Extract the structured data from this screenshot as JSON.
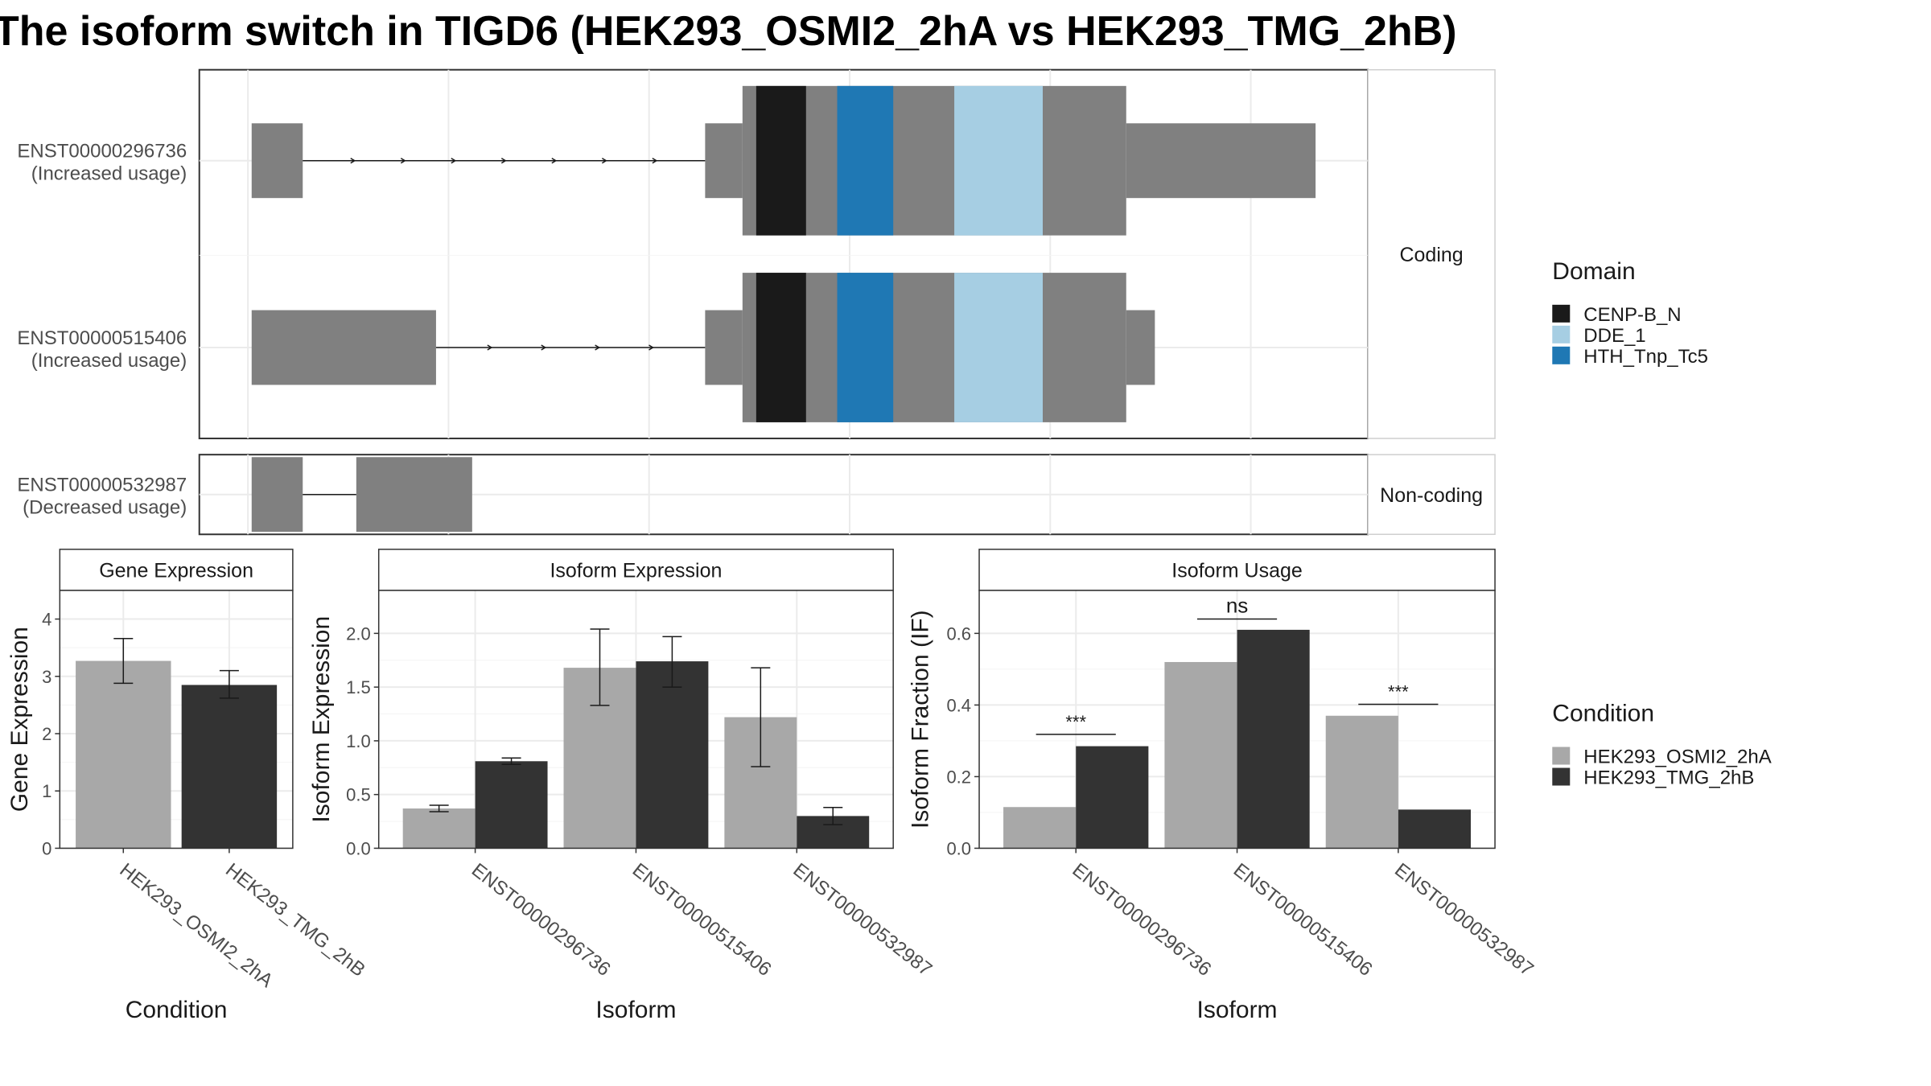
{
  "title": "The isoform switch in TIGD6 (HEK293_OSMI2_2hA vs HEK293_TMG_2hB)",
  "colors": {
    "cond1": "#a8a8a8",
    "cond2": "#333333",
    "exon": "#808080",
    "grid": "#ebebeb",
    "strip": "#ffffff",
    "CENP-B_N": "#1a1a1a",
    "DDE_1": "#a6cee3",
    "HTH_Tnp_Tc5": "#1f78b4"
  },
  "structure": {
    "coding_strip": "Coding",
    "noncoding_strip": "Non-coding",
    "isoforms": [
      {
        "label": "ENST00000296736",
        "sublabel": "(Increased usage)"
      },
      {
        "label": "ENST00000515406",
        "sublabel": "(Increased usage)"
      },
      {
        "label": "ENST00000532987",
        "sublabel": "(Decreased usage)"
      }
    ]
  },
  "legend_domain": {
    "title": "Domain",
    "items": [
      {
        "name": "CENP-B_N",
        "color": "#1a1a1a"
      },
      {
        "name": "DDE_1",
        "color": "#a6cee3"
      },
      {
        "name": "HTH_Tnp_Tc5",
        "color": "#1f78b4"
      }
    ]
  },
  "legend_condition": {
    "title": "Condition",
    "items": [
      {
        "name": "HEK293_OSMI2_2hA",
        "color": "#a8a8a8"
      },
      {
        "name": "HEK293_TMG_2hB",
        "color": "#333333"
      }
    ]
  },
  "chart_data": [
    {
      "type": "bar",
      "title": "Gene Expression",
      "xlabel": "Condition",
      "ylabel": "Gene Expression",
      "ylim": [
        0,
        4.5
      ],
      "yticks": [
        0,
        1,
        2,
        3,
        4
      ],
      "categories": [
        "HEK293_OSMI2_2hA",
        "HEK293_TMG_2hB"
      ],
      "values": [
        3.27,
        2.85
      ],
      "error_low": [
        2.88,
        2.62
      ],
      "error_high": [
        3.66,
        3.1
      ],
      "grid": true
    },
    {
      "type": "bar",
      "title": "Isoform Expression",
      "xlabel": "Isoform",
      "ylabel": "Isoform Expression",
      "ylim": [
        0,
        2.4
      ],
      "yticks": [
        0.0,
        0.5,
        1.0,
        1.5,
        2.0
      ],
      "categories": [
        "ENST00000296736",
        "ENST00000515406",
        "ENST00000532987"
      ],
      "series": [
        {
          "name": "HEK293_OSMI2_2hA",
          "values": [
            0.37,
            1.68,
            1.22
          ],
          "error_low": [
            0.34,
            1.33,
            0.76
          ],
          "error_high": [
            0.4,
            2.04,
            1.68
          ]
        },
        {
          "name": "HEK293_TMG_2hB",
          "values": [
            0.81,
            1.74,
            0.3
          ],
          "error_low": [
            0.78,
            1.5,
            0.22
          ],
          "error_high": [
            0.84,
            1.97,
            0.38
          ]
        }
      ],
      "grid": true
    },
    {
      "type": "bar",
      "title": "Isoform Usage",
      "xlabel": "Isoform",
      "ylabel": "Isoform Fraction (IF)",
      "ylim": [
        0,
        0.72
      ],
      "yticks": [
        0.0,
        0.2,
        0.4,
        0.6
      ],
      "categories": [
        "ENST00000296736",
        "ENST00000515406",
        "ENST00000532987"
      ],
      "series": [
        {
          "name": "HEK293_OSMI2_2hA",
          "values": [
            0.115,
            0.52,
            0.37
          ]
        },
        {
          "name": "HEK293_TMG_2hB",
          "values": [
            0.285,
            0.61,
            0.108
          ]
        }
      ],
      "annotations": [
        "***",
        "ns",
        "***"
      ],
      "annotation_levels": [
        0.318,
        0.64,
        0.402
      ],
      "grid": true
    }
  ]
}
